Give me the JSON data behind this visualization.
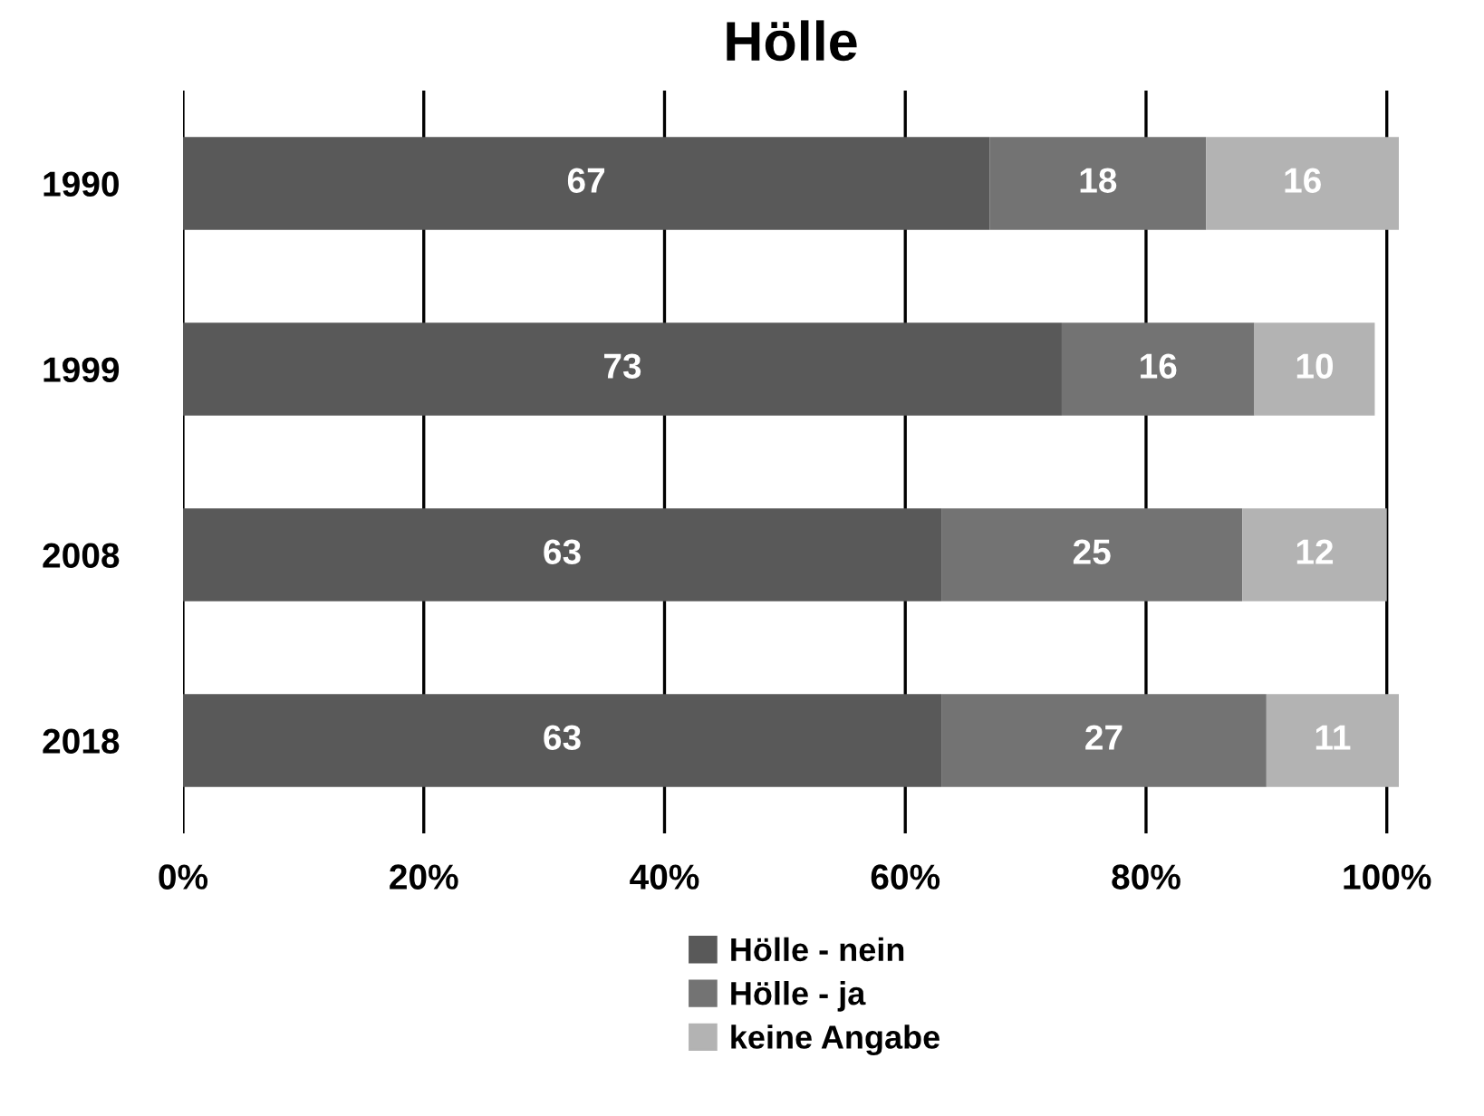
{
  "chart_data": {
    "type": "bar",
    "title": "Hölle",
    "orientation": "horizontal",
    "stacked": true,
    "categories": [
      "1990",
      "1999",
      "2008",
      "2018"
    ],
    "series": [
      {
        "name": "Hölle - nein",
        "color": "#595959",
        "values": [
          67,
          73,
          63,
          63
        ]
      },
      {
        "name": "Hölle - ja",
        "color": "#737373",
        "values": [
          18,
          16,
          25,
          27
        ]
      },
      {
        "name": "keine Angabe",
        "color": "#b3b3b3",
        "values": [
          16,
          10,
          12,
          11
        ]
      }
    ],
    "data_labels": true,
    "xlim": [
      0,
      101
    ],
    "xticks": [
      {
        "value": 0,
        "label": "0%"
      },
      {
        "value": 20,
        "label": "20%"
      },
      {
        "value": 40,
        "label": "40%"
      },
      {
        "value": 60,
        "label": "60%"
      },
      {
        "value": 80,
        "label": "80%"
      },
      {
        "value": 100,
        "label": "100%"
      }
    ],
    "grid": "x",
    "legend": "bottom"
  }
}
